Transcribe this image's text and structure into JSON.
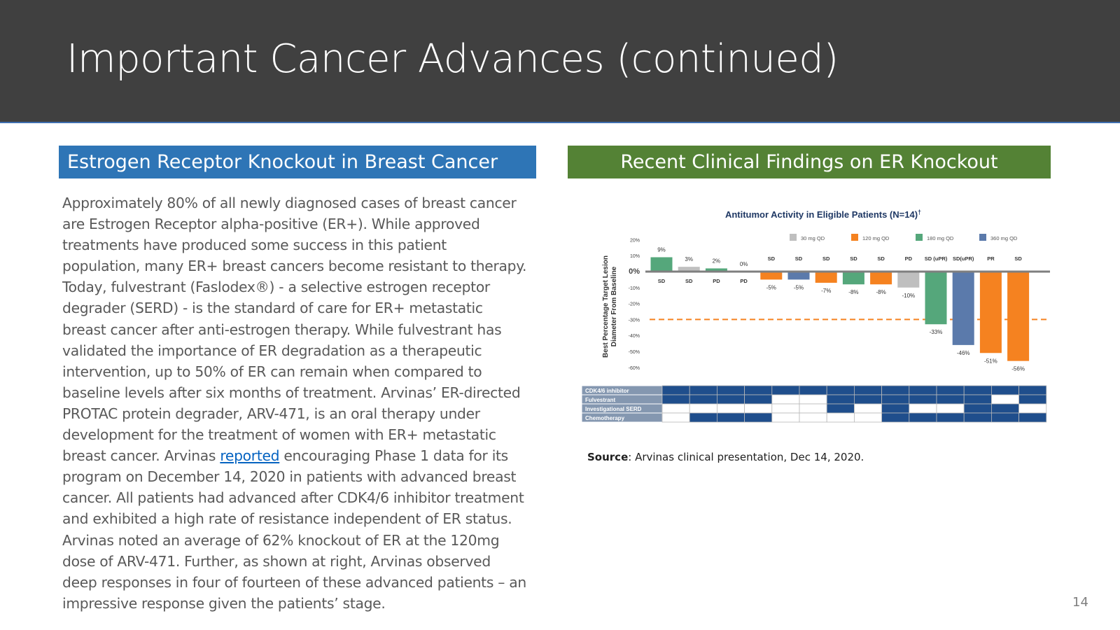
{
  "header": {
    "title": "Important Cancer Advances (continued)"
  },
  "left_section": {
    "title": "Estrogen Receptor Knockout in Breast Cancer",
    "text_before_link": "Approximately 80% of all newly diagnosed cases of breast cancer are Estrogen Receptor alpha-positive (ER+). While approved treatments have produced some success in this patient population, many ER+ breast cancers become resistant to therapy. Today, fulvestrant (Faslodex®) - a selective estrogen receptor degrader (SERD) - is the standard of care for ER+ metastatic breast cancer after anti-estrogen therapy. While fulvestrant has validated the importance of ER degradation as a therapeutic intervention, up to 50% of ER can remain when compared to baseline levels after six months of treatment. Arvinas’ ER-directed PROTAC protein degrader, ARV-471, is an oral therapy under development for the treatment of women with ER+ metastatic breast cancer. Arvinas ",
    "link_text": "reported",
    "text_after_link": " encouraging Phase 1 data for its program on December 14, 2020 in patients with advanced breast cancer. All patients had advanced after CDK4/6 inhibitor treatment and exhibited a high rate of resistance independent of ER status. Arvinas noted an average of 62% knockout of ER at the 120mg dose of ARV-471. Further, as shown at right, Arvinas observed deep responses in four of fourteen of these advanced patients – an impressive response given the patients’ stage."
  },
  "right_section": {
    "title": "Recent Clinical Findings on ER Knockout",
    "source_label": "Source",
    "source_text": ": Arvinas clinical presentation, Dec 14, 2020."
  },
  "page_number": "14",
  "chart_data": {
    "type": "bar",
    "title": "Antitumor Activity in Eligible Patients (N=14)",
    "title_superscript": "†",
    "ylabel_line1": "Best Percentage Target Lesion",
    "ylabel_line2": "Diameter From Baseline",
    "ylim": [
      -60,
      20
    ],
    "y_ticks": [
      20,
      10,
      0,
      -10,
      -20,
      -30,
      -40,
      -50,
      -60
    ],
    "y_tick_labels": [
      "20%",
      "10%",
      "0%",
      "-10%",
      "-20%",
      "-30%",
      "-40%",
      "-50%",
      "-60%"
    ],
    "threshold": -30,
    "legend": [
      {
        "name": "30 mg QD",
        "color": "#bfbfbf"
      },
      {
        "name": "120 mg QD",
        "color": "#f58220"
      },
      {
        "name": "180 mg QD",
        "color": "#55a77b"
      },
      {
        "name": "360 mg QD",
        "color": "#5b7aab"
      }
    ],
    "bars": [
      {
        "value": 9,
        "label": "9%",
        "response": "SD",
        "dose": "180 mg QD"
      },
      {
        "value": 3,
        "label": "3%",
        "response": "SD",
        "dose": "30 mg QD"
      },
      {
        "value": 2,
        "label": "2%",
        "response": "PD",
        "dose": "180 mg QD"
      },
      {
        "value": 0,
        "label": "0%",
        "response": "PD",
        "dose": "30 mg QD"
      },
      {
        "value": -5,
        "label": "-5%",
        "response": "SD",
        "dose": "120 mg QD"
      },
      {
        "value": -5,
        "label": "-5%",
        "response": "SD",
        "dose": "360 mg QD"
      },
      {
        "value": -7,
        "label": "-7%",
        "response": "SD",
        "dose": "120 mg QD"
      },
      {
        "value": -8,
        "label": "-8%",
        "response": "SD",
        "dose": "180 mg QD"
      },
      {
        "value": -8,
        "label": "-8%",
        "response": "SD",
        "dose": "120 mg QD"
      },
      {
        "value": -10,
        "label": "-10%",
        "response": "PD",
        "dose": "30 mg QD"
      },
      {
        "value": -33,
        "label": "-33%",
        "response": "SD (uPR)",
        "dose": "180 mg QD"
      },
      {
        "value": -46,
        "label": "-46%",
        "response": "SD(uPR)",
        "dose": "360 mg QD"
      },
      {
        "value": -51,
        "label": "-51%",
        "response": "PR",
        "dose": "120 mg QD"
      },
      {
        "value": -56,
        "label": "-56%",
        "response": "SD",
        "dose": "120 mg QD"
      }
    ],
    "prior_therapy_table": {
      "rows": [
        "CDK4/6 inhibitor",
        "Fulvestrant",
        "Investigational SERD",
        "Chemotherapy"
      ],
      "cells": [
        [
          1,
          1,
          1,
          1,
          1,
          1,
          1,
          1,
          1,
          1,
          1,
          1,
          1,
          1
        ],
        [
          1,
          1,
          1,
          1,
          0,
          0,
          1,
          1,
          1,
          1,
          1,
          1,
          0,
          1
        ],
        [
          0,
          0,
          0,
          0,
          0,
          0,
          1,
          0,
          1,
          0,
          0,
          1,
          1,
          0
        ],
        [
          0,
          1,
          1,
          1,
          0,
          0,
          0,
          0,
          1,
          1,
          1,
          1,
          1,
          1
        ]
      ]
    }
  }
}
